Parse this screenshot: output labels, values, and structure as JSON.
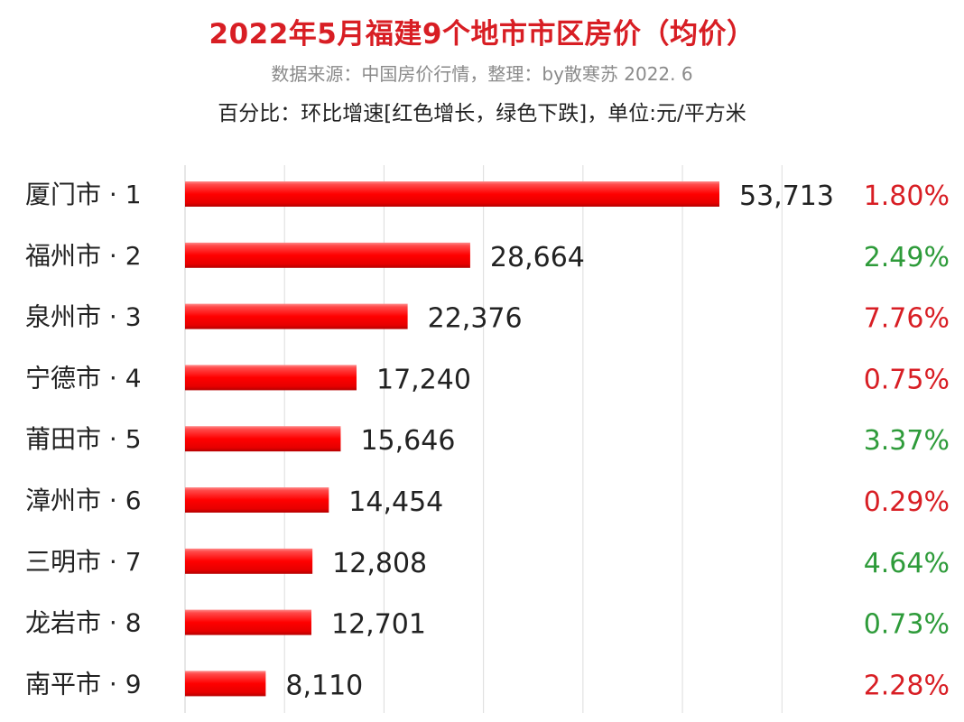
{
  "header": {
    "title": "2022年5月福建9个地市市区房价（均价）",
    "source": "数据来源：中国房价行情，整理：by散寒苏  2022. 6",
    "note": "百分比：环比增速[红色增长，绿色下跌]，单位:元/平方米"
  },
  "colors": {
    "bar": "#e8191f",
    "up": "#d81e24",
    "down": "#2e9b3a",
    "grid": "#dcdcdc",
    "text": "#222222"
  },
  "chart_data": {
    "type": "bar",
    "orientation": "horizontal",
    "xlim": [
      0,
      60000
    ],
    "grid": true,
    "categories": [
      "厦门市 · 1",
      "福州市 · 2",
      "泉州市 · 3",
      "宁德市 · 4",
      "莆田市 · 5",
      "漳州市 · 6",
      "三明市 · 7",
      "龙岩市 · 8",
      "南平市 · 9"
    ],
    "values": [
      53713,
      28664,
      22376,
      17240,
      15646,
      14454,
      12808,
      12701,
      8110
    ],
    "value_labels": [
      "53,713",
      "28,664",
      "22,376",
      "17,240",
      "15,646",
      "14,454",
      "12,808",
      "12,701",
      "8,110"
    ],
    "changes": [
      "1.80%",
      "2.49%",
      "7.76%",
      "0.75%",
      "3.37%",
      "0.29%",
      "4.64%",
      "0.73%",
      "2.28%"
    ],
    "change_direction": [
      "up",
      "down",
      "up",
      "up",
      "down",
      "up",
      "down",
      "down",
      "up"
    ]
  }
}
